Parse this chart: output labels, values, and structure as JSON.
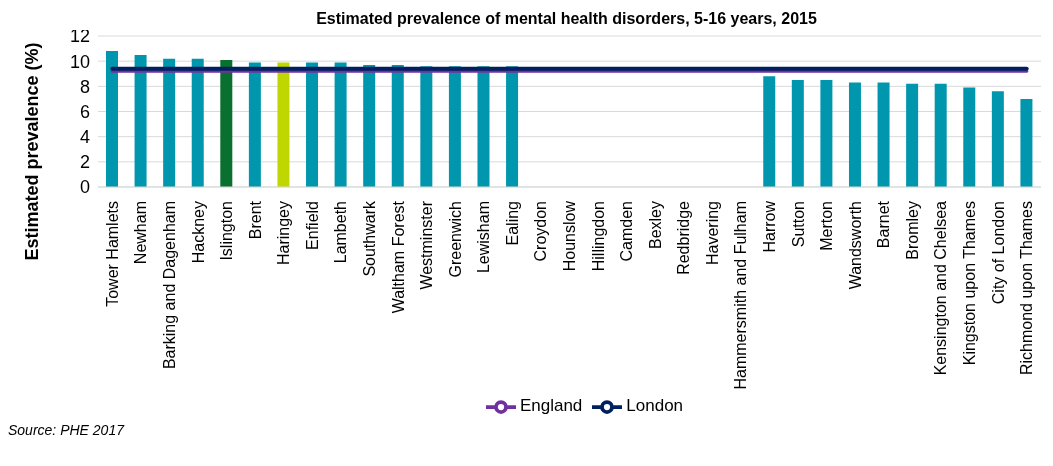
{
  "chart_data": {
    "type": "bar",
    "title": "Estimated prevalence of mental health disorders, 5-16 years, 2015",
    "ylabel": "Estimated prevalence (%)",
    "categories": [
      "Tower Hamlets",
      "Newham",
      "Barking and Dagenham",
      "Hackney",
      "Islington",
      "Brent",
      "Haringey",
      "Enfield",
      "Lambeth",
      "Southwark",
      "Waltham Forest",
      "Westminster",
      "Greenwich",
      "Lewisham",
      "Ealing",
      "Croydon",
      "Hounslow",
      "Hillingdon",
      "Camden",
      "Bexley",
      "Redbridge",
      "Havering",
      "Hammersmith and Fulham",
      "Harrow",
      "Sutton",
      "Merton",
      "Wandsworth",
      "Barnet",
      "Bromley",
      "Kensington and Chelsea",
      "Kingston upon Thames",
      "City of London",
      "Richmond upon Thames"
    ],
    "series": [
      {
        "values": [
          10.8,
          10.5,
          10.2,
          10.2,
          10.1,
          9.9,
          9.9,
          9.9,
          9.9,
          9.7,
          9.7,
          9.6,
          9.6,
          9.6,
          9.6,
          null,
          null,
          null,
          null,
          null,
          null,
          null,
          null,
          8.8,
          8.5,
          8.5,
          8.3,
          8.3,
          8.2,
          8.2,
          7.9,
          7.6,
          7.0
        ],
        "colors": [
          "#0097ae",
          "#0097ae",
          "#0097ae",
          "#0097ae",
          "#0a7030",
          "#0097ae",
          "#c0d600",
          "#0097ae",
          "#0097ae",
          "#0097ae",
          "#0097ae",
          "#0097ae",
          "#0097ae",
          "#0097ae",
          "#0097ae",
          "#0097ae",
          "#0097ae",
          "#0097ae",
          "#0097ae",
          "#0097ae",
          "#0097ae",
          "#0097ae",
          "#0097ae",
          "#0097ae",
          "#0097ae",
          "#0097ae",
          "#0097ae",
          "#0097ae",
          "#0097ae",
          "#0097ae",
          "#0097ae",
          "#0097ae",
          "#0097ae"
        ]
      },
      {
        "type": "line",
        "name": "England",
        "color": "#7030a0",
        "values": [
          9.2,
          9.2,
          9.2,
          9.2,
          9.2,
          9.2,
          9.2,
          9.2,
          9.2,
          9.2,
          9.2,
          9.2,
          9.2,
          9.2,
          9.2,
          9.2,
          9.2,
          9.2,
          9.2,
          9.2,
          9.2,
          9.2,
          9.2,
          9.2,
          9.2,
          9.2,
          9.2,
          9.2,
          9.2,
          9.2,
          9.2,
          9.2,
          9.2
        ]
      },
      {
        "type": "line",
        "name": "London",
        "color": "#002060",
        "values": [
          9.4,
          9.4,
          9.4,
          9.4,
          9.4,
          9.4,
          9.4,
          9.4,
          9.4,
          9.4,
          9.4,
          9.4,
          9.4,
          9.4,
          9.4,
          9.4,
          9.4,
          9.4,
          9.4,
          9.4,
          9.4,
          9.4,
          9.4,
          9.4,
          9.4,
          9.4,
          9.4,
          9.4,
          9.4,
          9.4,
          9.4,
          9.4,
          9.4
        ]
      }
    ],
    "ylim": [
      0,
      12
    ],
    "yticks": [
      0,
      2,
      4,
      6,
      8,
      10,
      12
    ],
    "grid": "y",
    "legend": "bottom",
    "marker": "none",
    "line_style": "solid",
    "annotations": [
      "Source: PHE 2017"
    ]
  }
}
